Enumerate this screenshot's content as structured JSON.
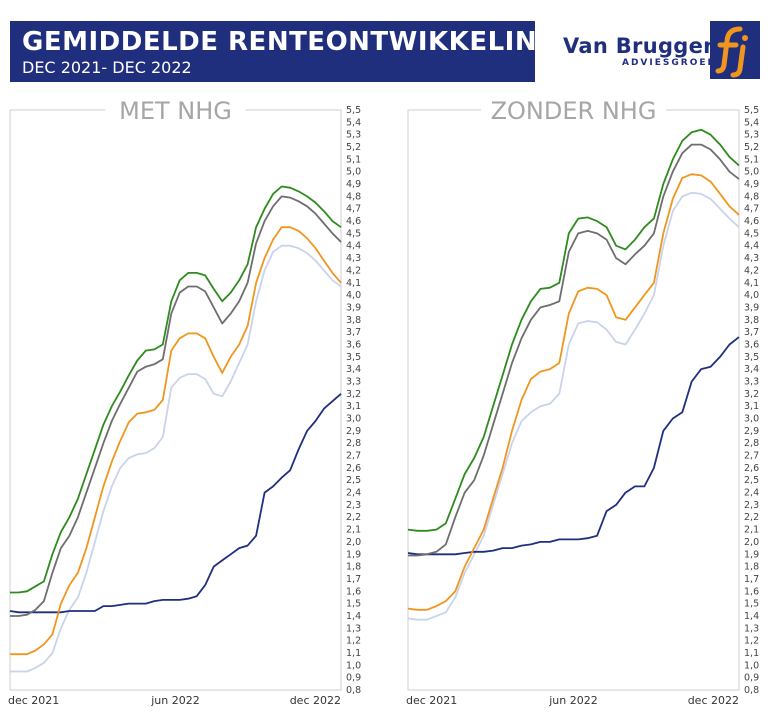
{
  "header": {
    "title": "GEMIDDELDE RENTEONTWIKKELING",
    "subtitle": "DEC 2021- DEC 2022"
  },
  "logo": {
    "name": "Van Bruggen",
    "sub": "ADVIESGROEP",
    "icon": "fj-logo-icon"
  },
  "colors": {
    "header_bg": "#1f2f7e",
    "green": "#2e8b1e",
    "gray": "#6e6e6e",
    "orange": "#f0961e",
    "light": "#c9d3ea",
    "navy": "#1f2f7e",
    "frame": "#cfcfcf"
  },
  "chart_data": [
    {
      "type": "line",
      "title": "MET NHG",
      "x_ticks": [
        "dec 2021",
        "jun 2022",
        "dec 2022"
      ],
      "x_tick_positions": [
        0,
        26,
        52
      ],
      "ylim": [
        0.8,
        5.5
      ],
      "y_tick_step": 0.1,
      "series": [
        {
          "values": [
            1.59,
            1.59,
            1.6,
            1.64,
            1.68,
            1.9,
            2.08,
            2.2,
            2.35,
            2.55,
            2.75,
            2.95,
            3.1,
            3.22,
            3.35,
            3.47,
            3.55,
            3.56,
            3.6,
            3.95,
            4.12,
            4.18,
            4.18,
            4.16,
            4.05,
            3.95,
            4.02,
            4.12,
            4.25,
            4.55,
            4.7,
            4.82,
            4.88,
            4.87,
            4.84,
            4.8,
            4.75,
            4.68,
            4.6,
            4.55
          ]
        },
        {
          "values": [
            1.4,
            1.4,
            1.41,
            1.45,
            1.52,
            1.75,
            1.95,
            2.05,
            2.2,
            2.4,
            2.6,
            2.8,
            2.98,
            3.12,
            3.25,
            3.38,
            3.42,
            3.44,
            3.48,
            3.85,
            4.02,
            4.07,
            4.07,
            4.03,
            3.9,
            3.77,
            3.85,
            3.95,
            4.1,
            4.42,
            4.6,
            4.72,
            4.8,
            4.79,
            4.76,
            4.72,
            4.66,
            4.58,
            4.5,
            4.43
          ]
        },
        {
          "values": [
            1.09,
            1.09,
            1.09,
            1.12,
            1.17,
            1.25,
            1.5,
            1.65,
            1.75,
            1.95,
            2.2,
            2.45,
            2.65,
            2.82,
            2.97,
            3.04,
            3.05,
            3.07,
            3.15,
            3.55,
            3.65,
            3.69,
            3.69,
            3.65,
            3.5,
            3.37,
            3.5,
            3.6,
            3.75,
            4.1,
            4.3,
            4.45,
            4.55,
            4.55,
            4.52,
            4.46,
            4.38,
            4.28,
            4.18,
            4.1
          ]
        },
        {
          "values": [
            0.95,
            0.95,
            0.95,
            0.98,
            1.02,
            1.1,
            1.3,
            1.45,
            1.55,
            1.75,
            2.0,
            2.25,
            2.45,
            2.6,
            2.68,
            2.71,
            2.72,
            2.76,
            2.85,
            3.25,
            3.33,
            3.36,
            3.36,
            3.32,
            3.2,
            3.18,
            3.3,
            3.45,
            3.6,
            3.95,
            4.2,
            4.35,
            4.4,
            4.4,
            4.38,
            4.34,
            4.28,
            4.2,
            4.12,
            4.07
          ]
        },
        {
          "values": [
            1.44,
            1.43,
            1.43,
            1.43,
            1.43,
            1.43,
            1.43,
            1.44,
            1.44,
            1.44,
            1.44,
            1.48,
            1.48,
            1.49,
            1.5,
            1.5,
            1.5,
            1.52,
            1.53,
            1.53,
            1.53,
            1.54,
            1.56,
            1.65,
            1.8,
            1.85,
            1.9,
            1.95,
            1.97,
            2.05,
            2.4,
            2.45,
            2.52,
            2.58,
            2.75,
            2.9,
            2.98,
            3.08,
            3.14,
            3.2
          ]
        }
      ]
    },
    {
      "type": "line",
      "title": "ZONDER NHG",
      "x_ticks": [
        "dec 2021",
        "jun 2022",
        "dec 2022"
      ],
      "x_tick_positions": [
        0,
        26,
        52
      ],
      "ylim": [
        0.8,
        5.5
      ],
      "y_tick_step": 0.1,
      "series": [
        {
          "values": [
            2.1,
            2.09,
            2.09,
            2.1,
            2.15,
            2.35,
            2.55,
            2.68,
            2.85,
            3.1,
            3.35,
            3.6,
            3.8,
            3.95,
            4.05,
            4.06,
            4.1,
            4.5,
            4.62,
            4.63,
            4.6,
            4.55,
            4.4,
            4.37,
            4.45,
            4.55,
            4.62,
            4.9,
            5.1,
            5.25,
            5.32,
            5.34,
            5.3,
            5.22,
            5.12,
            5.05
          ]
        },
        {
          "values": [
            1.89,
            1.89,
            1.9,
            1.92,
            1.98,
            2.2,
            2.4,
            2.5,
            2.7,
            2.95,
            3.2,
            3.45,
            3.65,
            3.8,
            3.9,
            3.92,
            3.95,
            4.35,
            4.5,
            4.52,
            4.5,
            4.45,
            4.3,
            4.25,
            4.33,
            4.4,
            4.5,
            4.8,
            5.0,
            5.15,
            5.22,
            5.22,
            5.18,
            5.1,
            5.0,
            4.94
          ]
        },
        {
          "values": [
            1.46,
            1.45,
            1.45,
            1.48,
            1.52,
            1.6,
            1.8,
            1.95,
            2.1,
            2.35,
            2.6,
            2.9,
            3.15,
            3.32,
            3.38,
            3.4,
            3.45,
            3.85,
            4.03,
            4.06,
            4.05,
            4.0,
            3.82,
            3.8,
            3.9,
            4.0,
            4.1,
            4.5,
            4.78,
            4.95,
            4.98,
            4.97,
            4.92,
            4.82,
            4.72,
            4.65
          ]
        },
        {
          "values": [
            1.38,
            1.37,
            1.37,
            1.4,
            1.43,
            1.55,
            1.75,
            1.9,
            2.05,
            2.3,
            2.55,
            2.8,
            2.98,
            3.05,
            3.1,
            3.12,
            3.2,
            3.6,
            3.77,
            3.79,
            3.78,
            3.72,
            3.62,
            3.6,
            3.72,
            3.85,
            4.0,
            4.4,
            4.68,
            4.8,
            4.83,
            4.82,
            4.78,
            4.7,
            4.62,
            4.55
          ]
        },
        {
          "values": [
            1.91,
            1.9,
            1.9,
            1.9,
            1.9,
            1.9,
            1.91,
            1.92,
            1.92,
            1.93,
            1.95,
            1.95,
            1.97,
            1.98,
            2.0,
            2.0,
            2.02,
            2.02,
            2.02,
            2.03,
            2.05,
            2.25,
            2.3,
            2.4,
            2.45,
            2.45,
            2.6,
            2.9,
            3.0,
            3.05,
            3.3,
            3.4,
            3.42,
            3.5,
            3.6,
            3.66
          ]
        }
      ]
    }
  ]
}
